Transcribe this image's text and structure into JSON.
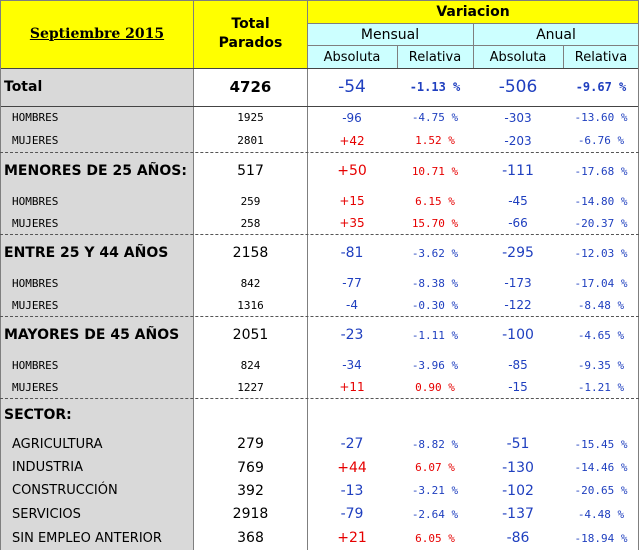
{
  "header": {
    "period": "Septiembre 2015",
    "total_parados_line1": "Total",
    "total_parados_line2": "Parados",
    "variacion": "Variacion",
    "mensual": "Mensual",
    "anual": "Anual",
    "absoluta_1": "Absoluta",
    "relativa_1": "Relativa",
    "absoluta_2": "Absoluta",
    "relativa_2": "Relativa"
  },
  "rows": [
    {
      "label": "Total",
      "kind": "total",
      "parados": "4726",
      "m_abs": "-54",
      "m_rel": "-1.13 %",
      "a_abs": "-506",
      "a_rel": "-9.67 %"
    },
    {
      "label": "HOMBRES",
      "kind": "sub",
      "parados": "1925",
      "m_abs": "-96",
      "m_rel": "-4.75 %",
      "a_abs": "-303",
      "a_rel": "-13.60 %"
    },
    {
      "label": "MUJERES",
      "kind": "sub",
      "parados": "2801",
      "m_abs": "+42",
      "m_rel": "1.52 %",
      "a_abs": "-203",
      "a_rel": "-6.76 %"
    },
    {
      "label": "MENORES DE 25 AÑOS:",
      "kind": "group",
      "parados": "517",
      "m_abs": "+50",
      "m_rel": "10.71 %",
      "a_abs": "-111",
      "a_rel": "-17.68 %"
    },
    {
      "label": "HOMBRES",
      "kind": "sub",
      "parados": "259",
      "m_abs": "+15",
      "m_rel": "6.15 %",
      "a_abs": "-45",
      "a_rel": "-14.80 %"
    },
    {
      "label": "MUJERES",
      "kind": "sub",
      "parados": "258",
      "m_abs": "+35",
      "m_rel": "15.70 %",
      "a_abs": "-66",
      "a_rel": "-20.37 %"
    },
    {
      "label": "ENTRE 25 Y 44 AÑOS",
      "kind": "group",
      "parados": "2158",
      "m_abs": "-81",
      "m_rel": "-3.62 %",
      "a_abs": "-295",
      "a_rel": "-12.03 %"
    },
    {
      "label": "HOMBRES",
      "kind": "sub",
      "parados": "842",
      "m_abs": "-77",
      "m_rel": "-8.38 %",
      "a_abs": "-173",
      "a_rel": "-17.04 %"
    },
    {
      "label": "MUJERES",
      "kind": "sub",
      "parados": "1316",
      "m_abs": "-4",
      "m_rel": "-0.30 %",
      "a_abs": "-122",
      "a_rel": "-8.48 %"
    },
    {
      "label": "MAYORES DE 45 AÑOS",
      "kind": "group",
      "parados": "2051",
      "m_abs": "-23",
      "m_rel": "-1.11 %",
      "a_abs": "-100",
      "a_rel": "-4.65 %"
    },
    {
      "label": "HOMBRES",
      "kind": "sub",
      "parados": "824",
      "m_abs": "-34",
      "m_rel": "-3.96 %",
      "a_abs": "-85",
      "a_rel": "-9.35 %"
    },
    {
      "label": "MUJERES",
      "kind": "sub",
      "parados": "1227",
      "m_abs": "+11",
      "m_rel": "0.90 %",
      "a_abs": "-15",
      "a_rel": "-1.21 %"
    },
    {
      "label": "SECTOR:",
      "kind": "section",
      "parados": "",
      "m_abs": "",
      "m_rel": "",
      "a_abs": "",
      "a_rel": ""
    },
    {
      "label": "AGRICULTURA",
      "kind": "sector",
      "parados": "279",
      "m_abs": "-27",
      "m_rel": "-8.82 %",
      "a_abs": "-51",
      "a_rel": "-15.45 %"
    },
    {
      "label": "INDUSTRIA",
      "kind": "sector",
      "parados": "769",
      "m_abs": "+44",
      "m_rel": "6.07 %",
      "a_abs": "-130",
      "a_rel": "-14.46 %"
    },
    {
      "label": "CONSTRUCCIÓN",
      "kind": "sector",
      "parados": "392",
      "m_abs": "-13",
      "m_rel": "-3.21 %",
      "a_abs": "-102",
      "a_rel": "-20.65 %"
    },
    {
      "label": "SERVICIOS",
      "kind": "sector",
      "parados": "2918",
      "m_abs": "-79",
      "m_rel": "-2.64 %",
      "a_abs": "-137",
      "a_rel": "-4.48 %"
    },
    {
      "label": "SIN EMPLEO ANTERIOR",
      "kind": "sector",
      "parados": "368",
      "m_abs": "+21",
      "m_rel": "6.05 %",
      "a_abs": "-86",
      "a_rel": "-18.94 %"
    }
  ],
  "colors": {
    "header_yellow": "#ffff00",
    "header_cyan": "#ccffff",
    "label_gray": "#d9d9d9",
    "negative_blue": "#1f3fbf",
    "positive_red": "#e60000"
  }
}
